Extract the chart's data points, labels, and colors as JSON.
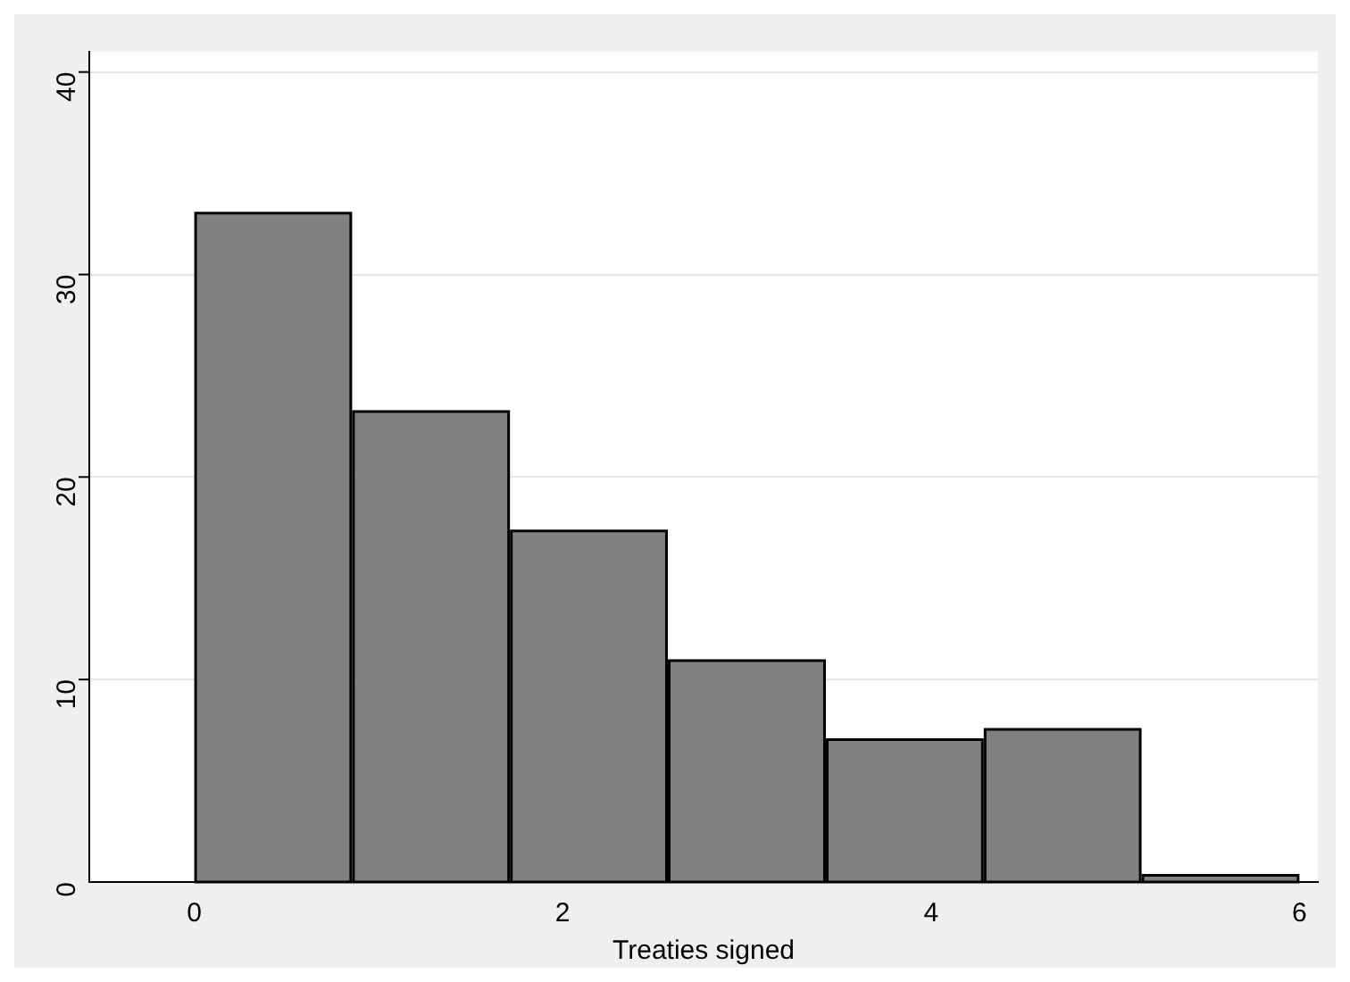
{
  "chart_data": {
    "type": "histogram",
    "xlabel": "Treaties signed",
    "bins": [
      0,
      0.857,
      1.714,
      2.571,
      3.429,
      4.286,
      5.143,
      6
    ],
    "values": [
      33.1,
      23.3,
      17.4,
      11.0,
      7.1,
      7.6,
      0.4
    ],
    "color": "#808080",
    "xlim": [
      -0.57,
      6.1
    ],
    "xticks": [
      0,
      2,
      4,
      6
    ],
    "ylim": [
      0,
      41
    ],
    "yticks": [
      0,
      10,
      20,
      30,
      40
    ],
    "grid": "y"
  }
}
